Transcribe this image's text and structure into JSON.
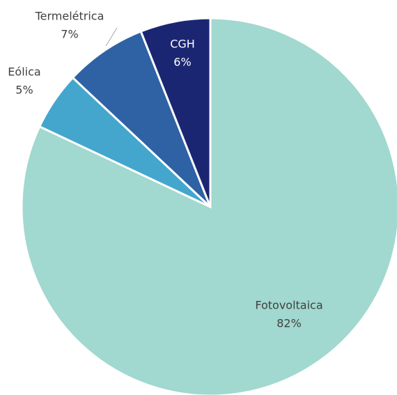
{
  "chart_data": {
    "type": "pie",
    "categories": [
      "Fotovoltaica",
      "Eólica",
      "Termelétrica",
      "CGH"
    ],
    "values": [
      82,
      5,
      7,
      6
    ],
    "value_labels": [
      "82%",
      "5%",
      "7%",
      "6%"
    ],
    "colors": [
      "#a1d8cf",
      "#44a6cd",
      "#2e62a4",
      "#1b2672"
    ]
  }
}
